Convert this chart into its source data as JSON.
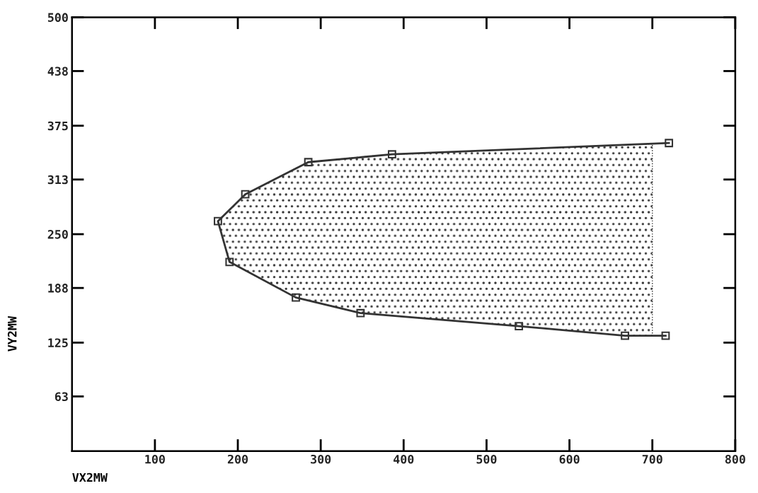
{
  "chart_data": {
    "type": "line",
    "xlabel": "VX2MW",
    "ylabel": "VY2MW",
    "xlim": [
      0,
      800
    ],
    "xticks": [
      100,
      200,
      300,
      400,
      500,
      600,
      700,
      800
    ],
    "ylim": [
      0,
      500
    ],
    "yticks": [
      63,
      125,
      188,
      250,
      313,
      375,
      438,
      500
    ],
    "grid": false,
    "line_style": "solid",
    "series": [
      {
        "type": "line",
        "color": "#333333",
        "x": [
          176,
          190,
          209,
          270,
          285,
          348,
          386,
          539,
          667,
          700
        ],
        "values": [
          null,
          null,
          null,
          null,
          null,
          null,
          null,
          null,
          null,
          null
        ],
        "lower": [
          265,
          218,
          208,
          177,
          174,
          159,
          156,
          144,
          133,
          133
        ],
        "upper": [
          265,
          278,
          296,
          326,
          333,
          339,
          342,
          348,
          353,
          354
        ]
      },
      {
        "type": "line",
        "marker": "square",
        "color": "#333333",
        "x": [
          716,
          667,
          539,
          348,
          270,
          190,
          176,
          209,
          285,
          386,
          720
        ],
        "values": [
          133,
          133,
          144,
          159,
          177,
          218,
          265,
          296,
          333,
          342,
          355
        ]
      }
    ]
  }
}
